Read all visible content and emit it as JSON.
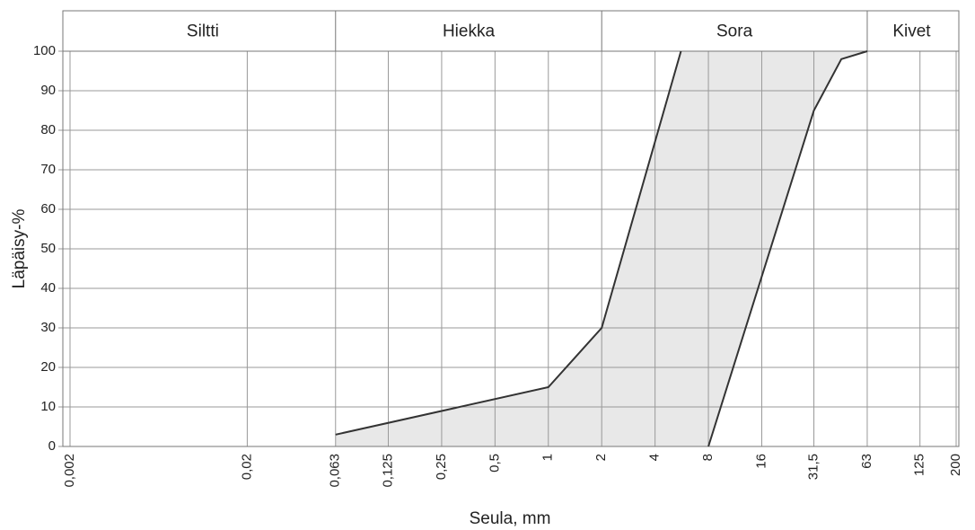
{
  "chart_data": {
    "type": "line",
    "xlabel": "Seula, mm",
    "ylabel": "Läpäisy-%",
    "zones": [
      {
        "label": "Siltti",
        "from": 0.002,
        "to": 0.063
      },
      {
        "label": "Hiekka",
        "from": 0.063,
        "to": 2
      },
      {
        "label": "Sora",
        "from": 2,
        "to": 63
      },
      {
        "label": "Kivet",
        "from": 63,
        "to": 200
      }
    ],
    "xscale": "log",
    "grid": true,
    "fill_between": true,
    "fill_color": "#e8e8e8",
    "xlim": [
      0.002,
      200
    ],
    "ylim": [
      0,
      100
    ],
    "xticks": [
      {
        "value": 0.002,
        "label": "0,002"
      },
      {
        "value": 0.02,
        "label": "0,02"
      },
      {
        "value": 0.063,
        "label": "0,063"
      },
      {
        "value": 0.125,
        "label": "0,125"
      },
      {
        "value": 0.25,
        "label": "0,25"
      },
      {
        "value": 0.5,
        "label": "0,5"
      },
      1,
      2,
      4,
      8,
      16,
      {
        "value": 31.5,
        "label": "31,5"
      },
      63,
      125,
      200
    ],
    "yticks": [
      0,
      10,
      20,
      30,
      40,
      50,
      60,
      70,
      80,
      90,
      100
    ],
    "series": [
      {
        "color": "#333333",
        "x": [
          0.063,
          1,
          2,
          5.6
        ],
        "values": [
          3,
          15,
          30,
          100
        ]
      },
      {
        "color": "#333333",
        "x": [
          8,
          31.5,
          45,
          63
        ],
        "values": [
          0,
          85,
          98,
          100
        ]
      }
    ]
  }
}
